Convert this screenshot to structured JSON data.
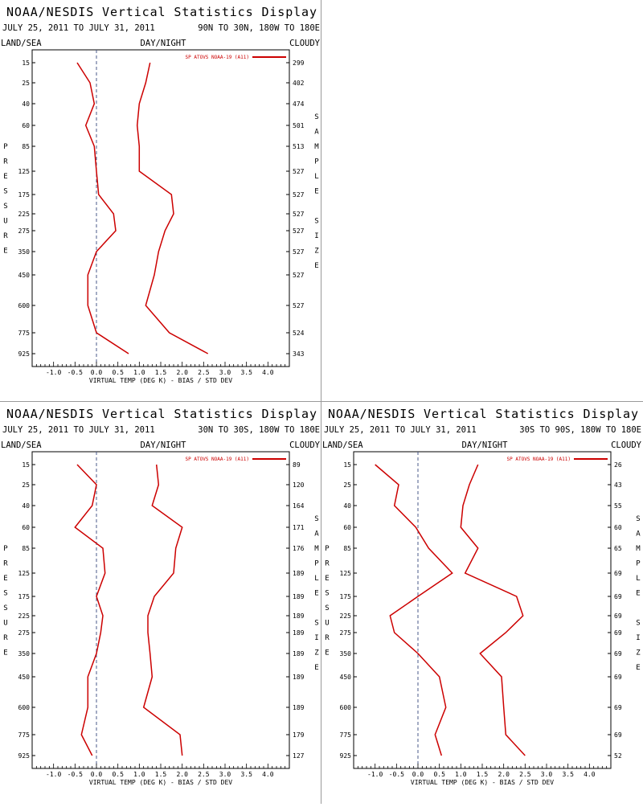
{
  "header": {
    "title": "NOAA/NESDIS Vertical Statistics Display",
    "date_range": "JULY 25, 2011 TO JULY 31, 2011",
    "land_sea": "LAND/SEA",
    "day_night": "DAY/NIGHT",
    "cloudy": "CLOUDY",
    "left_axis_letters": [
      "P",
      "R",
      "E",
      "S",
      "S",
      "U",
      "R",
      "E"
    ],
    "right_axis_letters": [
      "S",
      "A",
      "M",
      "P",
      "L",
      "E",
      "",
      "S",
      "I",
      "Z",
      "E"
    ]
  },
  "style": {
    "line_color": "#cc0000",
    "zero_line_color": "#4a5a8a"
  },
  "chart_data": [
    {
      "type": "line",
      "region": "90N TO 30N, 180W TO 180E",
      "legend": "SP ATOVS NOAA-19 (A11)",
      "xlabel": "VIRTUAL TEMP (DEG K) - BIAS / STD DEV",
      "xlim": [
        -1.5,
        4.5
      ],
      "xticks": [
        "-1.0",
        "-0.5",
        "0.0",
        "0.5",
        "1.0",
        "1.5",
        "2.0",
        "2.5",
        "3.0",
        "3.5",
        "4.0"
      ],
      "pressure_levels": [
        "15",
        "25",
        "40",
        "60",
        "85",
        "125",
        "175",
        "225",
        "275",
        "350",
        "450",
        "600",
        "775",
        "925"
      ],
      "sample_size": [
        "299",
        "402",
        "474",
        "501",
        "513",
        "527",
        "527",
        "527",
        "527",
        "527",
        "527",
        "527",
        "524",
        "343"
      ],
      "series": [
        {
          "values": [
            -0.45,
            -0.15,
            -0.05,
            -0.25,
            -0.05,
            0.0,
            0.05,
            0.4,
            0.45,
            0.0,
            -0.2,
            -0.2,
            0.0,
            0.75
          ]
        },
        {
          "values": [
            1.25,
            1.15,
            1.0,
            0.95,
            1.0,
            1.0,
            1.75,
            1.8,
            1.6,
            1.45,
            1.35,
            1.15,
            1.7,
            2.6
          ]
        }
      ]
    },
    {
      "type": "line",
      "region": "30N TO 30S, 180W TO 180E",
      "legend": "SP ATOVS NOAA-19 (A11)",
      "xlabel": "VIRTUAL TEMP (DEG K) - BIAS / STD DEV",
      "xlim": [
        -1.5,
        4.5
      ],
      "xticks": [
        "-1.0",
        "-0.5",
        "0.0",
        "0.5",
        "1.0",
        "1.5",
        "2.0",
        "2.5",
        "3.0",
        "3.5",
        "4.0"
      ],
      "pressure_levels": [
        "15",
        "25",
        "40",
        "60",
        "85",
        "125",
        "175",
        "225",
        "275",
        "350",
        "450",
        "600",
        "775",
        "925"
      ],
      "sample_size": [
        "89",
        "120",
        "164",
        "171",
        "176",
        "189",
        "189",
        "189",
        "189",
        "189",
        "189",
        "189",
        "179",
        "127"
      ],
      "series": [
        {
          "values": [
            -0.45,
            0.0,
            -0.1,
            -0.5,
            0.15,
            0.2,
            0.0,
            0.15,
            0.1,
            0.0,
            -0.2,
            -0.2,
            -0.35,
            -0.1
          ]
        },
        {
          "values": [
            1.4,
            1.45,
            1.3,
            2.0,
            1.85,
            1.8,
            1.35,
            1.2,
            1.2,
            1.25,
            1.3,
            1.1,
            1.95,
            2.0
          ]
        }
      ]
    },
    {
      "type": "line",
      "region": "30S TO 90S, 180W TO 180E",
      "legend": "SP ATOVS NOAA-19 (A11)",
      "xlabel": "VIRTUAL TEMP (DEG K) - BIAS / STD DEV",
      "xlim": [
        -1.5,
        4.5
      ],
      "xticks": [
        "-1.0",
        "-0.5",
        "0.0",
        "0.5",
        "1.0",
        "1.5",
        "2.0",
        "2.5",
        "3.0",
        "3.5",
        "4.0"
      ],
      "pressure_levels": [
        "15",
        "25",
        "40",
        "60",
        "85",
        "125",
        "175",
        "225",
        "275",
        "350",
        "450",
        "600",
        "775",
        "925"
      ],
      "sample_size": [
        "26",
        "43",
        "55",
        "60",
        "65",
        "69",
        "69",
        "69",
        "69",
        "69",
        "69",
        "69",
        "69",
        "52"
      ],
      "series": [
        {
          "values": [
            -1.0,
            -0.45,
            -0.55,
            -0.05,
            0.25,
            0.8,
            0.0,
            -0.65,
            -0.55,
            0.0,
            0.5,
            0.65,
            0.4,
            0.55
          ]
        },
        {
          "values": [
            1.4,
            1.2,
            1.05,
            1.0,
            1.4,
            1.1,
            2.3,
            2.45,
            2.05,
            1.45,
            1.95,
            2.0,
            2.05,
            2.5
          ]
        }
      ]
    }
  ]
}
